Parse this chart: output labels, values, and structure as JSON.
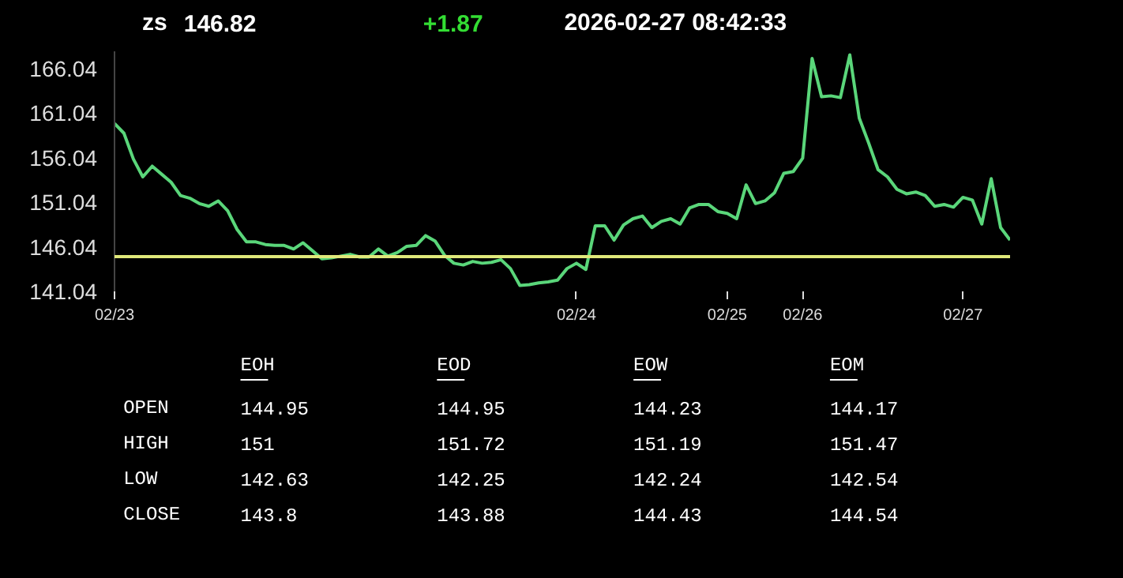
{
  "chart_data": [
    {
      "type": "line",
      "title": "zs",
      "annotations": [
        "146.82",
        "+1.87",
        "2026-02-27   08:42:33"
      ],
      "categories": [
        "02/23",
        null,
        null,
        null,
        null,
        null,
        null,
        null,
        null,
        null,
        null,
        null,
        null,
        null,
        null,
        null,
        null,
        null,
        null,
        null,
        null,
        null,
        null,
        null,
        null,
        null,
        null,
        null,
        null,
        null,
        null,
        null,
        null,
        null,
        null,
        null,
        null,
        null,
        null,
        null,
        null,
        null,
        null,
        null,
        null,
        null,
        null,
        null,
        null,
        "02/24",
        null,
        null,
        null,
        null,
        null,
        null,
        null,
        null,
        null,
        null,
        null,
        null,
        null,
        null,
        null,
        "02/25",
        null,
        null,
        null,
        null,
        null,
        null,
        null,
        "02/26",
        null,
        null,
        null,
        null,
        null,
        null,
        null,
        null,
        null,
        null,
        null,
        null,
        null,
        null,
        null,
        null,
        "02/27",
        null,
        null,
        null,
        null,
        null
      ],
      "series": [
        {
          "color": "#5ad67a",
          "values": [
            159.9,
            158.8,
            155.9,
            153.9,
            155.1,
            154.2,
            153.3,
            151.8,
            151.5,
            150.9,
            150.6,
            151.2,
            150.1,
            148.0,
            146.6,
            146.6,
            146.3,
            146.2,
            146.2,
            145.8,
            146.5,
            145.6,
            144.7,
            144.8,
            145.0,
            145.2,
            144.9,
            144.9,
            145.8,
            145.0,
            145.4,
            146.1,
            146.2,
            147.3,
            146.7,
            145.1,
            144.2,
            144.0,
            144.4,
            144.2,
            144.3,
            144.6,
            143.6,
            141.7,
            141.8,
            142.0,
            142.1,
            142.3,
            143.6,
            144.2,
            143.5,
            148.4,
            148.4,
            146.8,
            148.5,
            149.2,
            149.5,
            148.2,
            148.9,
            149.2,
            148.6,
            150.4,
            150.8,
            150.8,
            150.0,
            149.8,
            149.2,
            153.0,
            150.9,
            151.2,
            152.1,
            154.3,
            154.5,
            156.0,
            167.2,
            162.9,
            163.0,
            162.8,
            167.6,
            160.5,
            157.7,
            154.7,
            153.9,
            152.5,
            152.0,
            152.2,
            151.8,
            150.6,
            150.8,
            150.5,
            151.6,
            151.3,
            148.6,
            153.7,
            148.2,
            146.8
          ]
        }
      ],
      "ylim": [
        141.04,
        168
      ],
      "yticks": [
        141.04,
        146.04,
        151.04,
        156.04,
        161.04,
        166.04
      ],
      "ref_lines": [
        {
          "axis": "y",
          "value": 144.95,
          "color": "#dfe87a"
        }
      ],
      "grid": false,
      "marker": "none",
      "line_style": "solid"
    },
    {
      "type": "heatmap",
      "categories": [
        "EOH",
        "EOD",
        "EOW",
        "EOM"
      ],
      "y_categories": [
        "OPEN",
        "HIGH",
        "LOW",
        "CLOSE"
      ],
      "cells": [
        [
          144.95,
          144.95,
          144.23,
          144.17
        ],
        [
          151,
          151.72,
          151.19,
          151.47
        ],
        [
          142.63,
          142.25,
          142.24,
          142.54
        ],
        [
          143.8,
          143.88,
          144.43,
          144.54
        ]
      ],
      "data_labels": true
    }
  ]
}
